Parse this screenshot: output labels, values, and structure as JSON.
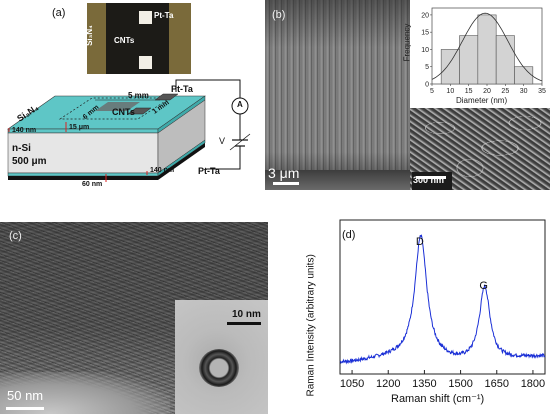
{
  "panel_a": {
    "label": "(a)",
    "photo": {
      "side_label": "Si₃N₄",
      "pt_label": "Pt-Ta",
      "cnt_label": "CNTs"
    },
    "schematic": {
      "pt_top": "Pt-Ta",
      "ammeter": "A",
      "voltage": "V",
      "dim_5mm": "5 mm",
      "dim_6mm": "6 mm",
      "dim_1mm": "1 mm",
      "cnts": "CNTs",
      "si3n4": "Si₃N₄",
      "t140_top": "140 nm",
      "t15": "15 μm",
      "nsi": "n-Si",
      "thickness": "500 μm",
      "t140_bottom": "140 nm",
      "t60": "60 nm",
      "pt_bottom": "Pt-Ta"
    }
  },
  "panel_b": {
    "label": "(b)",
    "scale_main": "3 μm",
    "scale_inset": "300 nm",
    "chart_data": {
      "type": "bar",
      "categories": [
        "10",
        "15",
        "20",
        "25",
        "30"
      ],
      "values": [
        10,
        14,
        20,
        14,
        5
      ],
      "fit": "gaussian",
      "xlabel": "Diameter (nm)",
      "ylabel": "Frequency",
      "xticks": [
        "5",
        "10",
        "15",
        "20",
        "25",
        "30",
        "35"
      ],
      "yticks": [
        "0",
        "5",
        "10",
        "15",
        "20"
      ],
      "xlim": [
        5,
        35
      ],
      "ylim": [
        0,
        22
      ]
    }
  },
  "panel_c": {
    "label": "(c)",
    "scale_main": "50 nm",
    "scale_inset": "10 nm"
  },
  "panel_d": {
    "label": "(d)",
    "chart_data": {
      "type": "line",
      "xlabel": "Raman shift (cm⁻¹)",
      "ylabel": "Raman Intensity (arbitrary units)",
      "xlim": [
        1000,
        1850
      ],
      "xticks": [
        "1050",
        "1200",
        "1350",
        "1500",
        "1650",
        "1800"
      ],
      "peaks": [
        {
          "name": "D",
          "x": 1335
        },
        {
          "name": "G",
          "x": 1600
        }
      ],
      "color": "#1a2fd6"
    }
  }
}
